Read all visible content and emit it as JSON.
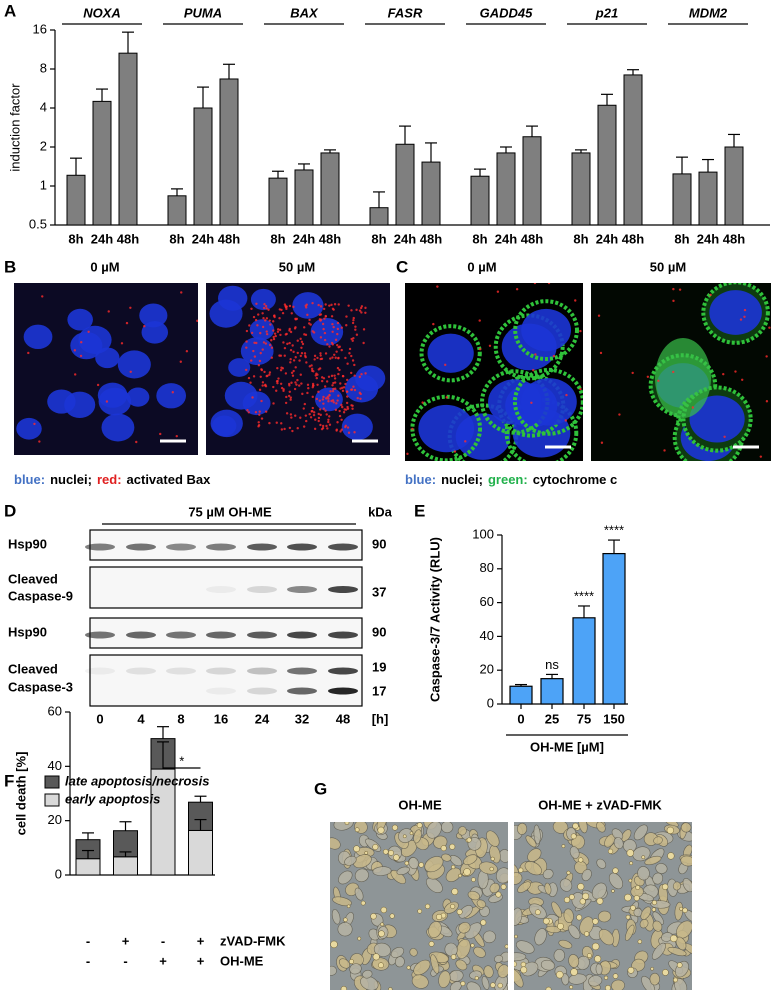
{
  "chart_data": [
    {
      "type": "bar",
      "label": "A",
      "ylabel": "induction factor",
      "log_y": true,
      "ylim": [
        0.5,
        16
      ],
      "yticks": [
        0.5,
        1,
        2,
        4,
        8,
        16
      ],
      "color": "#7f7f7f",
      "groups": [
        {
          "name": "NOXA",
          "categories": [
            "8h",
            "24h",
            "48h"
          ],
          "values": [
            1.21,
            4.5,
            10.6
          ],
          "errors": [
            0.43,
            1.1,
            4.8
          ]
        },
        {
          "name": "PUMA",
          "categories": [
            "8h",
            "24h",
            "48h"
          ],
          "values": [
            0.84,
            4.0,
            6.7
          ],
          "errors": [
            0.11,
            1.8,
            2.0
          ]
        },
        {
          "name": "BAX",
          "categories": [
            "8h",
            "24h",
            "48h"
          ],
          "values": [
            1.15,
            1.33,
            1.8
          ],
          "errors": [
            0.15,
            0.15,
            0.1
          ]
        },
        {
          "name": "FASR",
          "categories": [
            "8h",
            "24h",
            "48h"
          ],
          "values": [
            0.68,
            2.1,
            1.53
          ],
          "errors": [
            0.22,
            0.8,
            0.62
          ]
        },
        {
          "name": "GADD45",
          "categories": [
            "8h",
            "24h",
            "48h"
          ],
          "values": [
            1.19,
            1.8,
            2.4
          ],
          "errors": [
            0.16,
            0.2,
            0.5
          ]
        },
        {
          "name": "p21",
          "categories": [
            "8h",
            "24h",
            "48h"
          ],
          "values": [
            1.8,
            4.2,
            7.2
          ],
          "errors": [
            0.1,
            0.9,
            0.7
          ]
        },
        {
          "name": "MDM2",
          "categories": [
            "8h",
            "24h",
            "48h"
          ],
          "values": [
            1.24,
            1.28,
            2.0
          ],
          "errors": [
            0.43,
            0.32,
            0.5
          ]
        }
      ]
    },
    {
      "type": "bar",
      "label": "E",
      "ylabel": "Caspase-3/7  Activity (RLU)",
      "xlabel": "OH-ME [µM]",
      "categories": [
        "0",
        "25",
        "75",
        "150"
      ],
      "values": [
        10.5,
        15,
        51,
        89
      ],
      "errors": [
        1,
        2.5,
        7,
        8
      ],
      "annotations": [
        null,
        "ns",
        "****",
        "****"
      ],
      "color": "#4da3f7",
      "ylim": [
        0,
        100
      ],
      "yticks": [
        0,
        20,
        40,
        60,
        80,
        100
      ]
    },
    {
      "type": "stacked_bar",
      "label": "F",
      "ylabel": "cell death [%]",
      "ylim": [
        0,
        60
      ],
      "yticks": [
        0,
        20,
        40,
        60
      ],
      "series": [
        {
          "name": "early apoptosis",
          "color": "#d9d9d9",
          "values": [
            6,
            6.7,
            39,
            16.4
          ],
          "errors": [
            3,
            1.8,
            10,
            4
          ]
        },
        {
          "name": "late apoptosis/necrosis",
          "color": "#595959",
          "values": [
            7,
            9.6,
            11.2,
            10.4
          ],
          "errors": [
            2.5,
            3.3,
            4.4,
            2.2
          ]
        }
      ],
      "conditions": [
        {
          "name": "zVAD-FMK",
          "values": [
            "-",
            "+",
            "-",
            "+"
          ]
        },
        {
          "name": "OH-ME",
          "values": [
            "-",
            "-",
            "+",
            "+"
          ]
        }
      ],
      "significance": "*"
    }
  ],
  "panel_b": {
    "label": "B",
    "conditions": [
      "0 µM",
      "50 µM"
    ],
    "legend": [
      {
        "text": "blue:",
        "color": "#4472c4"
      },
      {
        "text": "nuclei;",
        "color": "#000000"
      },
      {
        "text": "red:",
        "color": "#e02020"
      },
      {
        "text": "activated Bax",
        "color": "#000000"
      }
    ]
  },
  "panel_c": {
    "label": "C",
    "conditions": [
      "0 µM",
      "50 µM"
    ],
    "legend": [
      {
        "text": "blue:",
        "color": "#4472c4"
      },
      {
        "text": "nuclei;",
        "color": "#000000"
      },
      {
        "text": "green:",
        "color": "#22b14c"
      },
      {
        "text": "cytochrome c",
        "color": "#000000"
      }
    ]
  },
  "panel_d": {
    "label": "D",
    "treatment": "75 µM OH-ME",
    "unit": "kDa",
    "rows": [
      {
        "name": [
          "Hsp90"
        ],
        "kda": [
          90
        ]
      },
      {
        "name": [
          "Cleaved",
          "Caspase-9"
        ],
        "kda": [
          37
        ]
      },
      {
        "name": [
          "Hsp90"
        ],
        "kda": [
          90
        ]
      },
      {
        "name": [
          "Cleaved",
          "Caspase-3"
        ],
        "kda": [
          19,
          17
        ]
      }
    ],
    "times": [
      0,
      4,
      8,
      16,
      24,
      32,
      48
    ],
    "time_unit": "[h]"
  },
  "panel_g": {
    "label": "G",
    "conditions": [
      "OH-ME",
      "OH-ME + zVAD-FMK"
    ]
  }
}
